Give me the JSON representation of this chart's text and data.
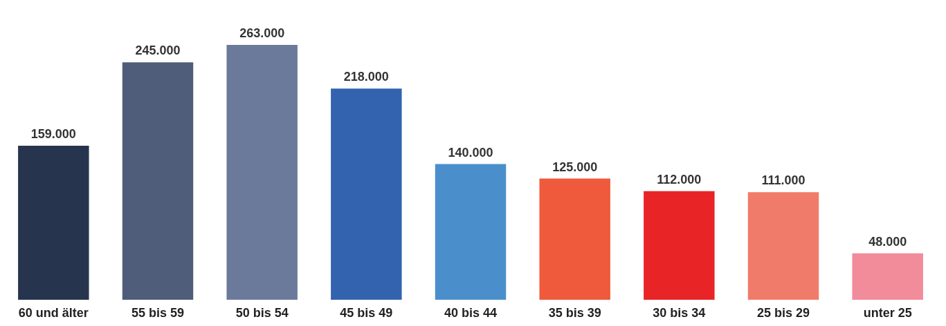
{
  "chart_data": {
    "type": "bar",
    "categories": [
      "60 und älter",
      "55 bis 59",
      "50 bis 54",
      "45 bis 49",
      "40 bis 44",
      "35 bis 39",
      "30 bis 34",
      "25 bis 29",
      "unter 25"
    ],
    "values": [
      159000,
      245000,
      263000,
      218000,
      140000,
      125000,
      112000,
      111000,
      48000
    ],
    "value_labels": [
      "159.000",
      "245.000",
      "263.000",
      "218.000",
      "140.000",
      "125.000",
      "112.000",
      "111.000",
      "48.000"
    ],
    "colors": [
      "#27344d",
      "#4f5d7a",
      "#6b7a9b",
      "#3363ae",
      "#4a8fcc",
      "#ee5a3b",
      "#e82427",
      "#f07b6a",
      "#f28b9a"
    ],
    "grid": false
  }
}
